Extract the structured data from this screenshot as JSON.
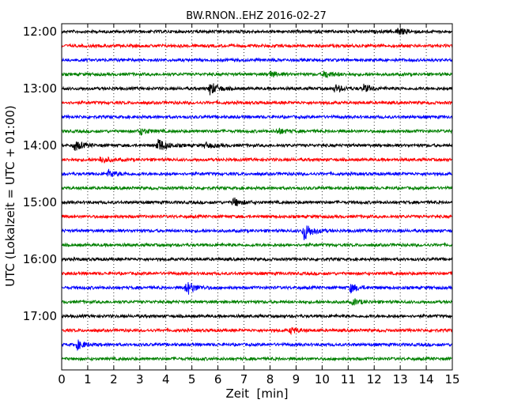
{
  "chart_data": {
    "type": "line",
    "title": "BW.RNON..EHZ 2016-02-27",
    "xlabel": "Zeit  [min]",
    "ylabel": "UTC (Lokalzeit = UTC + 01:00)",
    "xlim": [
      0,
      15
    ],
    "x_ticks": [
      "0",
      "1",
      "2",
      "3",
      "4",
      "5",
      "6",
      "7",
      "8",
      "9",
      "10",
      "11",
      "12",
      "13",
      "14",
      "15"
    ],
    "y_ticks": [
      "12:00",
      "13:00",
      "14:00",
      "15:00",
      "16:00",
      "17:00"
    ],
    "vertical_grid": "dotted",
    "row_interval_min": 15,
    "first_row": "12:00",
    "row_count": 24,
    "row_colors": [
      "#000000",
      "#ff0000",
      "#0000ff",
      "#008000"
    ],
    "events": [
      {
        "row": 0,
        "time_min": 12.9,
        "amp": 0.25
      },
      {
        "row": 4,
        "time_min": 5.7,
        "amp": 0.45
      },
      {
        "row": 4,
        "time_min": 10.5,
        "amp": 0.25
      },
      {
        "row": 4,
        "time_min": 11.6,
        "amp": 0.25
      },
      {
        "row": 3,
        "time_min": 8.0,
        "amp": 0.2
      },
      {
        "row": 3,
        "time_min": 10.1,
        "amp": 0.25
      },
      {
        "row": 7,
        "time_min": 3.0,
        "amp": 0.25
      },
      {
        "row": 7,
        "time_min": 8.3,
        "amp": 0.2
      },
      {
        "row": 8,
        "time_min": 0.5,
        "amp": 0.35
      },
      {
        "row": 8,
        "time_min": 3.7,
        "amp": 0.5
      },
      {
        "row": 8,
        "time_min": 5.5,
        "amp": 0.2
      },
      {
        "row": 9,
        "time_min": 1.5,
        "amp": 0.25
      },
      {
        "row": 10,
        "time_min": 1.8,
        "amp": 0.25
      },
      {
        "row": 12,
        "time_min": 6.6,
        "amp": 0.3
      },
      {
        "row": 14,
        "time_min": 9.3,
        "amp": 0.65
      },
      {
        "row": 18,
        "time_min": 4.8,
        "amp": 0.5
      },
      {
        "row": 18,
        "time_min": 11.1,
        "amp": 0.3
      },
      {
        "row": 19,
        "time_min": 11.2,
        "amp": 0.2
      },
      {
        "row": 21,
        "time_min": 8.8,
        "amp": 0.2
      },
      {
        "row": 22,
        "time_min": 0.6,
        "amp": 0.3
      }
    ]
  }
}
